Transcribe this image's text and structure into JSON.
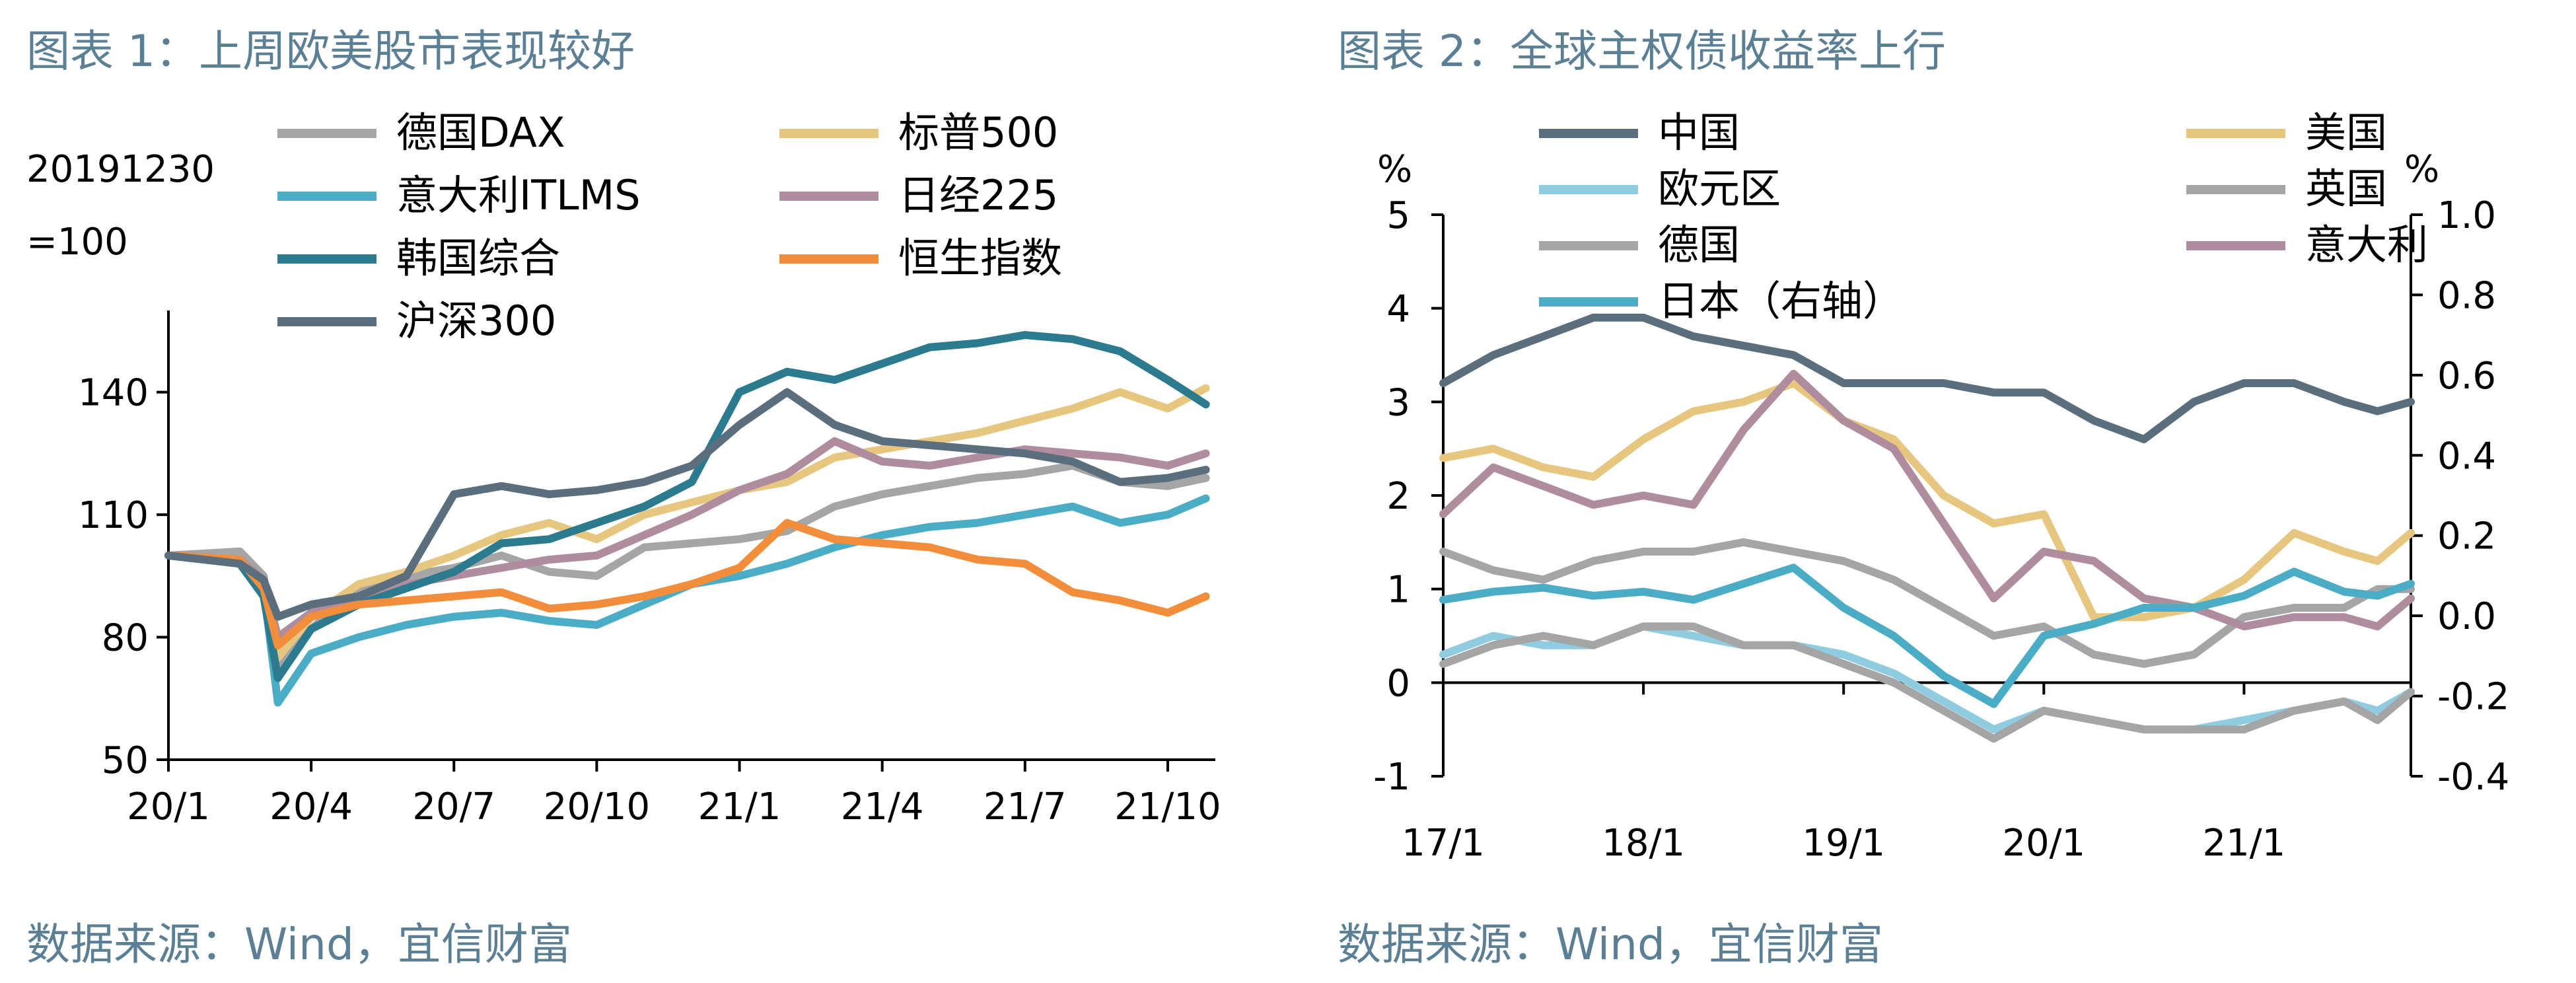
{
  "chart_data": [
    {
      "type": "line",
      "title": "图表 1：上周欧美股市表现较好",
      "source": "数据来源：Wind，宜信财富",
      "ylabel": "20191230",
      "ylabel2": "=100",
      "ylim": [
        50,
        160
      ],
      "yticks": [
        50,
        80,
        110,
        140
      ],
      "x_ticks": [
        "20/1",
        "20/4",
        "20/7",
        "20/10",
        "21/1",
        "21/4",
        "21/7",
        "21/10"
      ],
      "x_range": [
        0,
        22
      ],
      "x_tick_positions": [
        0,
        3,
        6,
        9,
        12,
        15,
        18,
        21
      ],
      "series": [
        {
          "name": "德国DAX",
          "color": "#a5a5a5",
          "x": [
            0,
            1.5,
            2,
            2.3,
            3,
            4,
            5,
            6,
            7,
            8,
            9,
            10,
            11,
            12,
            13,
            14,
            15,
            16,
            17,
            18,
            19,
            20,
            21,
            21.8
          ],
          "values": [
            100,
            101,
            95,
            72,
            82,
            92,
            95,
            97,
            100,
            96,
            95,
            102,
            103,
            104,
            106,
            112,
            115,
            117,
            119,
            120,
            122,
            118,
            117,
            119
          ]
        },
        {
          "name": "标普500",
          "color": "#e7c77f",
          "x": [
            0,
            1.5,
            2,
            2.3,
            3,
            4,
            5,
            6,
            7,
            8,
            9,
            10,
            11,
            12,
            13,
            14,
            15,
            16,
            17,
            18,
            19,
            20,
            21,
            21.8
          ],
          "values": [
            100,
            99,
            93,
            75,
            85,
            93,
            96,
            100,
            105,
            108,
            104,
            110,
            113,
            116,
            118,
            124,
            126,
            128,
            130,
            133,
            136,
            140,
            136,
            141
          ]
        },
        {
          "name": "意大利ITLMS",
          "color": "#4bacc6",
          "x": [
            0,
            1.5,
            2,
            2.3,
            3,
            4,
            5,
            6,
            7,
            8,
            9,
            10,
            11,
            12,
            13,
            14,
            15,
            16,
            17,
            18,
            19,
            20,
            21,
            21.8
          ],
          "values": [
            100,
            99,
            92,
            64,
            76,
            80,
            83,
            85,
            86,
            84,
            83,
            88,
            93,
            95,
            98,
            102,
            105,
            107,
            108,
            110,
            112,
            108,
            110,
            114
          ]
        },
        {
          "name": "日经225",
          "color": "#b08c9f",
          "x": [
            0,
            1.5,
            2,
            2.3,
            3,
            4,
            5,
            6,
            7,
            8,
            9,
            10,
            11,
            12,
            13,
            14,
            15,
            16,
            17,
            18,
            19,
            20,
            21,
            21.8
          ],
          "values": [
            100,
            99,
            94,
            80,
            86,
            90,
            93,
            95,
            97,
            99,
            100,
            105,
            110,
            116,
            120,
            128,
            123,
            122,
            124,
            126,
            125,
            124,
            122,
            125
          ]
        },
        {
          "name": "韩国综合",
          "color": "#2b7a8e",
          "x": [
            0,
            1.5,
            2,
            2.3,
            3,
            4,
            5,
            6,
            7,
            8,
            9,
            10,
            11,
            12,
            13,
            14,
            15,
            16,
            17,
            18,
            19,
            20,
            21,
            21.8
          ],
          "values": [
            100,
            98,
            90,
            70,
            82,
            88,
            92,
            96,
            103,
            104,
            108,
            112,
            118,
            140,
            145,
            143,
            147,
            151,
            152,
            154,
            153,
            150,
            143,
            137
          ]
        },
        {
          "name": "恒生指数",
          "color": "#f28e3b",
          "x": [
            0,
            1.5,
            2,
            2.3,
            3,
            4,
            5,
            6,
            7,
            8,
            9,
            10,
            11,
            12,
            13,
            14,
            15,
            16,
            17,
            18,
            19,
            20,
            21,
            21.8
          ],
          "values": [
            100,
            99,
            92,
            78,
            85,
            88,
            89,
            90,
            91,
            87,
            88,
            90,
            93,
            97,
            108,
            104,
            103,
            102,
            99,
            98,
            91,
            89,
            86,
            90
          ]
        },
        {
          "name": "沪深300",
          "color": "#5a6e7d",
          "x": [
            0,
            1.5,
            2,
            2.3,
            3,
            4,
            5,
            6,
            7,
            8,
            9,
            10,
            11,
            12,
            13,
            14,
            15,
            16,
            17,
            18,
            19,
            20,
            21,
            21.8
          ],
          "values": [
            100,
            98,
            94,
            85,
            88,
            90,
            95,
            115,
            117,
            115,
            116,
            118,
            122,
            132,
            140,
            132,
            128,
            127,
            126,
            125,
            123,
            118,
            119,
            121
          ]
        }
      ]
    },
    {
      "type": "line",
      "title": "图表 2：全球主权债收益率上行",
      "source": "数据来源：Wind，宜信财富",
      "ylabel_left": "%",
      "ylabel_right": "%",
      "ylim_left": [
        -1,
        5
      ],
      "yticks_left": [
        -1,
        0,
        1,
        2,
        3,
        4,
        5
      ],
      "ylim_right": [
        -0.4,
        1.0
      ],
      "yticks_right": [
        "-0.4",
        "-0.2",
        "0.0",
        "0.2",
        "0.4",
        "0.6",
        "0.8",
        "1.0"
      ],
      "x_ticks": [
        "17/1",
        "18/1",
        "19/1",
        "20/1",
        "21/1"
      ],
      "x_range": [
        0,
        58
      ],
      "x_tick_positions": [
        0,
        12,
        24,
        36,
        48
      ],
      "series": [
        {
          "name": "中国",
          "color": "#5a6e7d",
          "axis": "left",
          "x": [
            0,
            3,
            6,
            9,
            12,
            15,
            18,
            21,
            24,
            27,
            30,
            33,
            36,
            39,
            42,
            45,
            48,
            51,
            54,
            56,
            58
          ],
          "values": [
            3.2,
            3.5,
            3.7,
            3.9,
            3.9,
            3.7,
            3.6,
            3.5,
            3.2,
            3.2,
            3.2,
            3.1,
            3.1,
            2.8,
            2.6,
            3.0,
            3.2,
            3.2,
            3.0,
            2.9,
            3.0
          ]
        },
        {
          "name": "美国",
          "color": "#e7c77f",
          "axis": "left",
          "x": [
            0,
            3,
            6,
            9,
            12,
            15,
            18,
            21,
            24,
            27,
            30,
            33,
            36,
            39,
            42,
            45,
            48,
            51,
            54,
            56,
            58
          ],
          "values": [
            2.4,
            2.5,
            2.3,
            2.2,
            2.6,
            2.9,
            3.0,
            3.2,
            2.8,
            2.6,
            2.0,
            1.7,
            1.8,
            0.7,
            0.7,
            0.8,
            1.1,
            1.6,
            1.4,
            1.3,
            1.6
          ]
        },
        {
          "name": "欧元区",
          "color": "#8fcce0",
          "axis": "left",
          "x": [
            0,
            3,
            6,
            9,
            12,
            15,
            18,
            21,
            24,
            27,
            30,
            33,
            36,
            39,
            42,
            45,
            48,
            51,
            54,
            56,
            58
          ],
          "values": [
            0.3,
            0.5,
            0.4,
            0.4,
            0.6,
            0.5,
            0.4,
            0.4,
            0.3,
            0.1,
            -0.2,
            -0.5,
            -0.3,
            -0.4,
            -0.5,
            -0.5,
            -0.4,
            -0.3,
            -0.2,
            -0.3,
            -0.1
          ]
        },
        {
          "name": "英国",
          "color": "#a5a5a5",
          "axis": "left",
          "x": [
            0,
            3,
            6,
            9,
            12,
            15,
            18,
            21,
            24,
            27,
            30,
            33,
            36,
            39,
            42,
            45,
            48,
            51,
            54,
            56,
            58
          ],
          "values": [
            1.4,
            1.2,
            1.1,
            1.3,
            1.4,
            1.4,
            1.5,
            1.4,
            1.3,
            1.1,
            0.8,
            0.5,
            0.6,
            0.3,
            0.2,
            0.3,
            0.7,
            0.8,
            0.8,
            1.0,
            1.0
          ]
        },
        {
          "name": "德国",
          "color": "#a5a5a5",
          "axis": "left",
          "x": [
            0,
            3,
            6,
            9,
            12,
            15,
            18,
            21,
            24,
            27,
            30,
            33,
            36,
            39,
            42,
            45,
            48,
            51,
            54,
            56,
            58
          ],
          "values": [
            0.2,
            0.4,
            0.5,
            0.4,
            0.6,
            0.6,
            0.4,
            0.4,
            0.2,
            0.0,
            -0.3,
            -0.6,
            -0.3,
            -0.4,
            -0.5,
            -0.5,
            -0.5,
            -0.3,
            -0.2,
            -0.4,
            -0.1
          ]
        },
        {
          "name": "意大利",
          "color": "#b08c9f",
          "axis": "left",
          "x": [
            0,
            3,
            6,
            9,
            12,
            15,
            18,
            21,
            24,
            27,
            30,
            33,
            36,
            39,
            42,
            45,
            48,
            51,
            54,
            56,
            58
          ],
          "values": [
            1.8,
            2.3,
            2.1,
            1.9,
            2.0,
            1.9,
            2.7,
            3.3,
            2.8,
            2.5,
            1.7,
            0.9,
            1.4,
            1.3,
            0.9,
            0.8,
            0.6,
            0.7,
            0.7,
            0.6,
            0.9
          ]
        },
        {
          "name": "日本（右轴）",
          "color": "#4bacc6",
          "axis": "right",
          "x": [
            0,
            3,
            6,
            9,
            12,
            15,
            18,
            21,
            24,
            27,
            30,
            33,
            36,
            39,
            42,
            45,
            48,
            51,
            54,
            56,
            58
          ],
          "values": [
            0.04,
            0.06,
            0.07,
            0.05,
            0.06,
            0.04,
            0.08,
            0.12,
            0.02,
            -0.05,
            -0.15,
            -0.22,
            -0.05,
            -0.02,
            0.02,
            0.02,
            0.05,
            0.11,
            0.06,
            0.05,
            0.08
          ]
        }
      ]
    }
  ]
}
